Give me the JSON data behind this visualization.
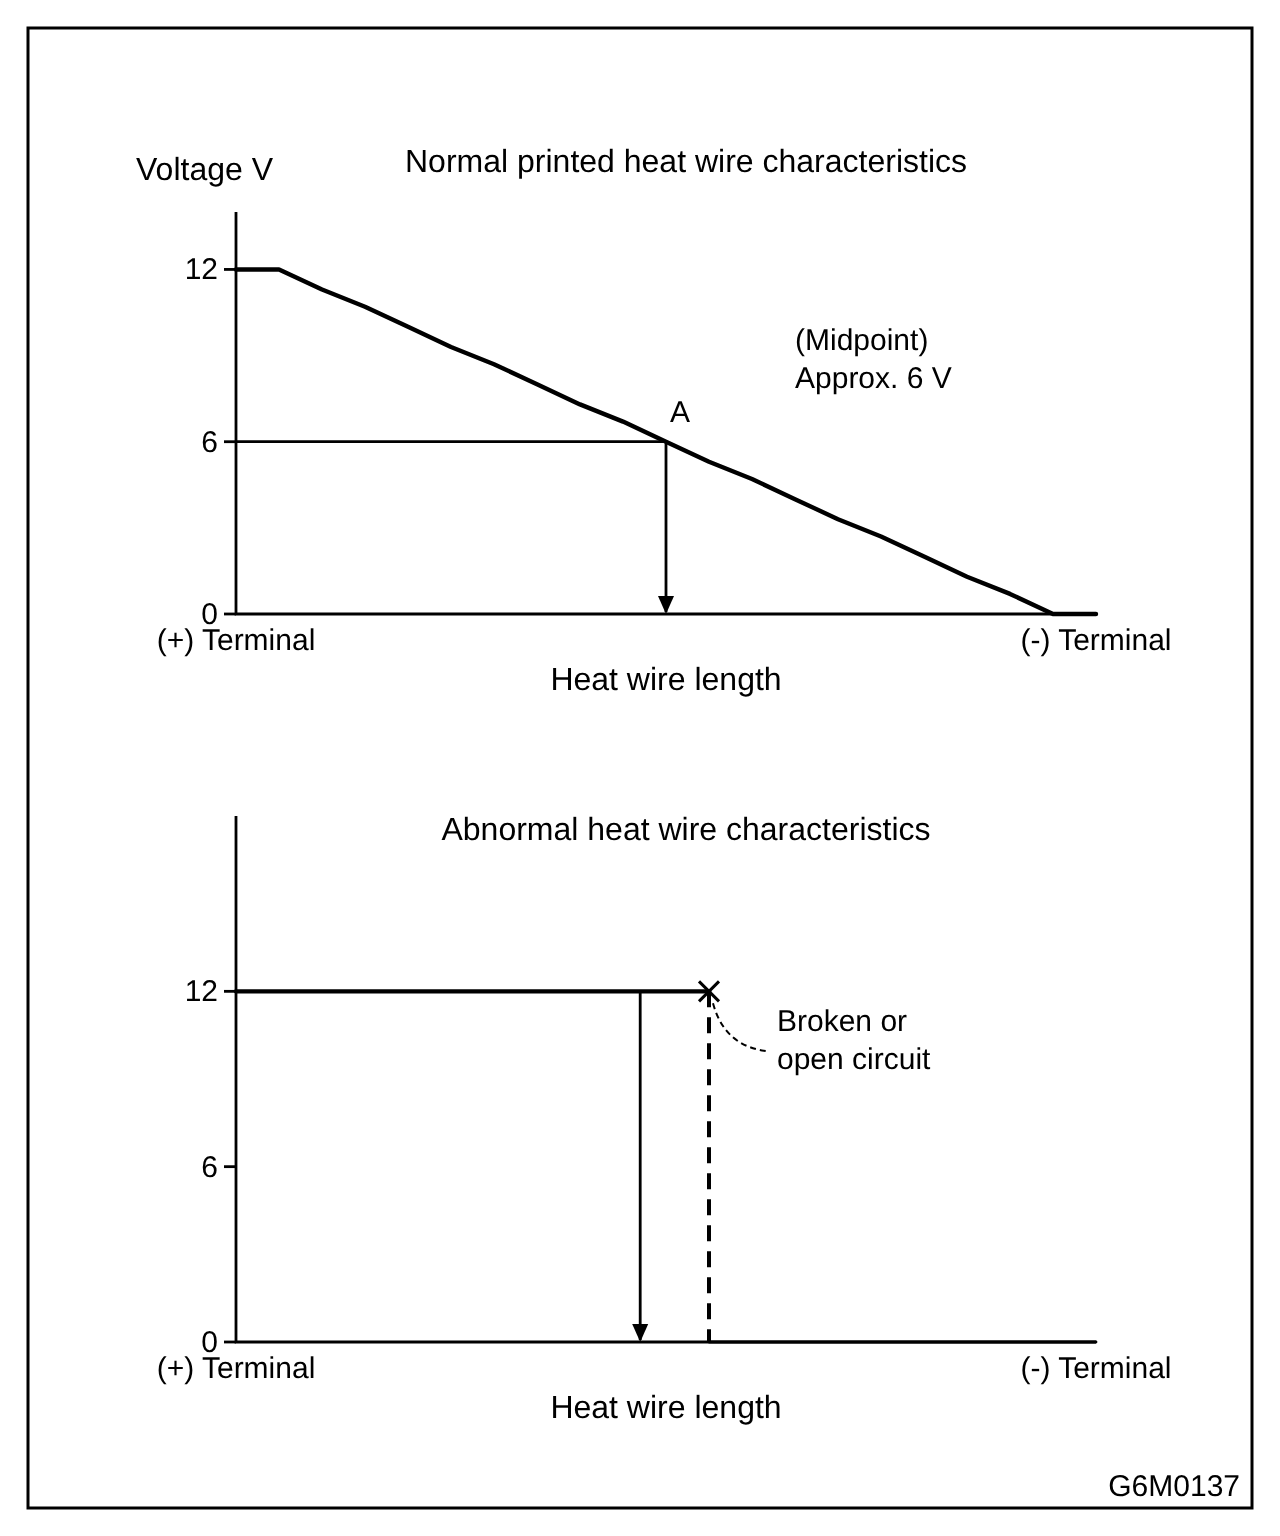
{
  "chart_data": [
    {
      "type": "line",
      "title": "Normal printed heat wire characteristics",
      "ylabel": "Voltage V",
      "xlabel": "Heat wire length",
      "categories": [
        "(+) Terminal",
        null,
        null,
        null,
        null,
        null,
        null,
        null,
        null,
        null,
        null,
        null,
        null,
        null,
        null,
        null,
        null,
        null,
        null,
        null,
        "(-) Terminal"
      ],
      "series": [
        {
          "color": "#000000",
          "values": [
            12,
            12,
            11.3,
            10.7,
            10,
            9.3,
            8.7,
            8,
            7.3,
            6.7,
            6,
            5.3,
            4.7,
            4,
            3.3,
            2.7,
            2,
            1.3,
            0.7,
            0,
            0
          ]
        },
        {
          "color": "#000000",
          "values": [
            6,
            6,
            6,
            6,
            6,
            6,
            6,
            6,
            6,
            6,
            6,
            null,
            null,
            null,
            null,
            null,
            null,
            null,
            null,
            null,
            null
          ]
        }
      ],
      "ylim": [
        0,
        14
      ],
      "yticks": [
        0,
        6,
        12
      ],
      "grid": false,
      "marker": "none",
      "line_style": "solid",
      "annotations": [
        {
          "text": "A",
          "y": 6
        },
        "(Midpoint)\nApprox. 6 V"
      ]
    },
    {
      "type": "line",
      "title": "Abnormal heat wire characteristics",
      "xlabel": "Heat wire length",
      "categories": [
        "(+) Terminal",
        null,
        null,
        null,
        null,
        null,
        null,
        null,
        null,
        null,
        null,
        null,
        null,
        null,
        null,
        null,
        null,
        null,
        null,
        null,
        "(-) Terminal"
      ],
      "series": [
        {
          "color": "#000000",
          "values": [
            12,
            12,
            12,
            12,
            12,
            12,
            12,
            12,
            12,
            12,
            12,
            12,
            null,
            null,
            null,
            null,
            null,
            null,
            null,
            null,
            null
          ]
        },
        {
          "color": "#000000",
          "values": [
            null,
            null,
            null,
            null,
            null,
            null,
            null,
            null,
            null,
            null,
            null,
            0,
            0,
            0,
            0,
            0,
            0,
            0,
            0,
            0,
            0
          ]
        }
      ],
      "ylim": [
        0,
        18
      ],
      "yticks": [
        0,
        6,
        12
      ],
      "grid": false,
      "marker": "none",
      "line_style": "solid",
      "annotations": [
        "Broken or\nopen circuit",
        "G6M0137"
      ]
    }
  ]
}
